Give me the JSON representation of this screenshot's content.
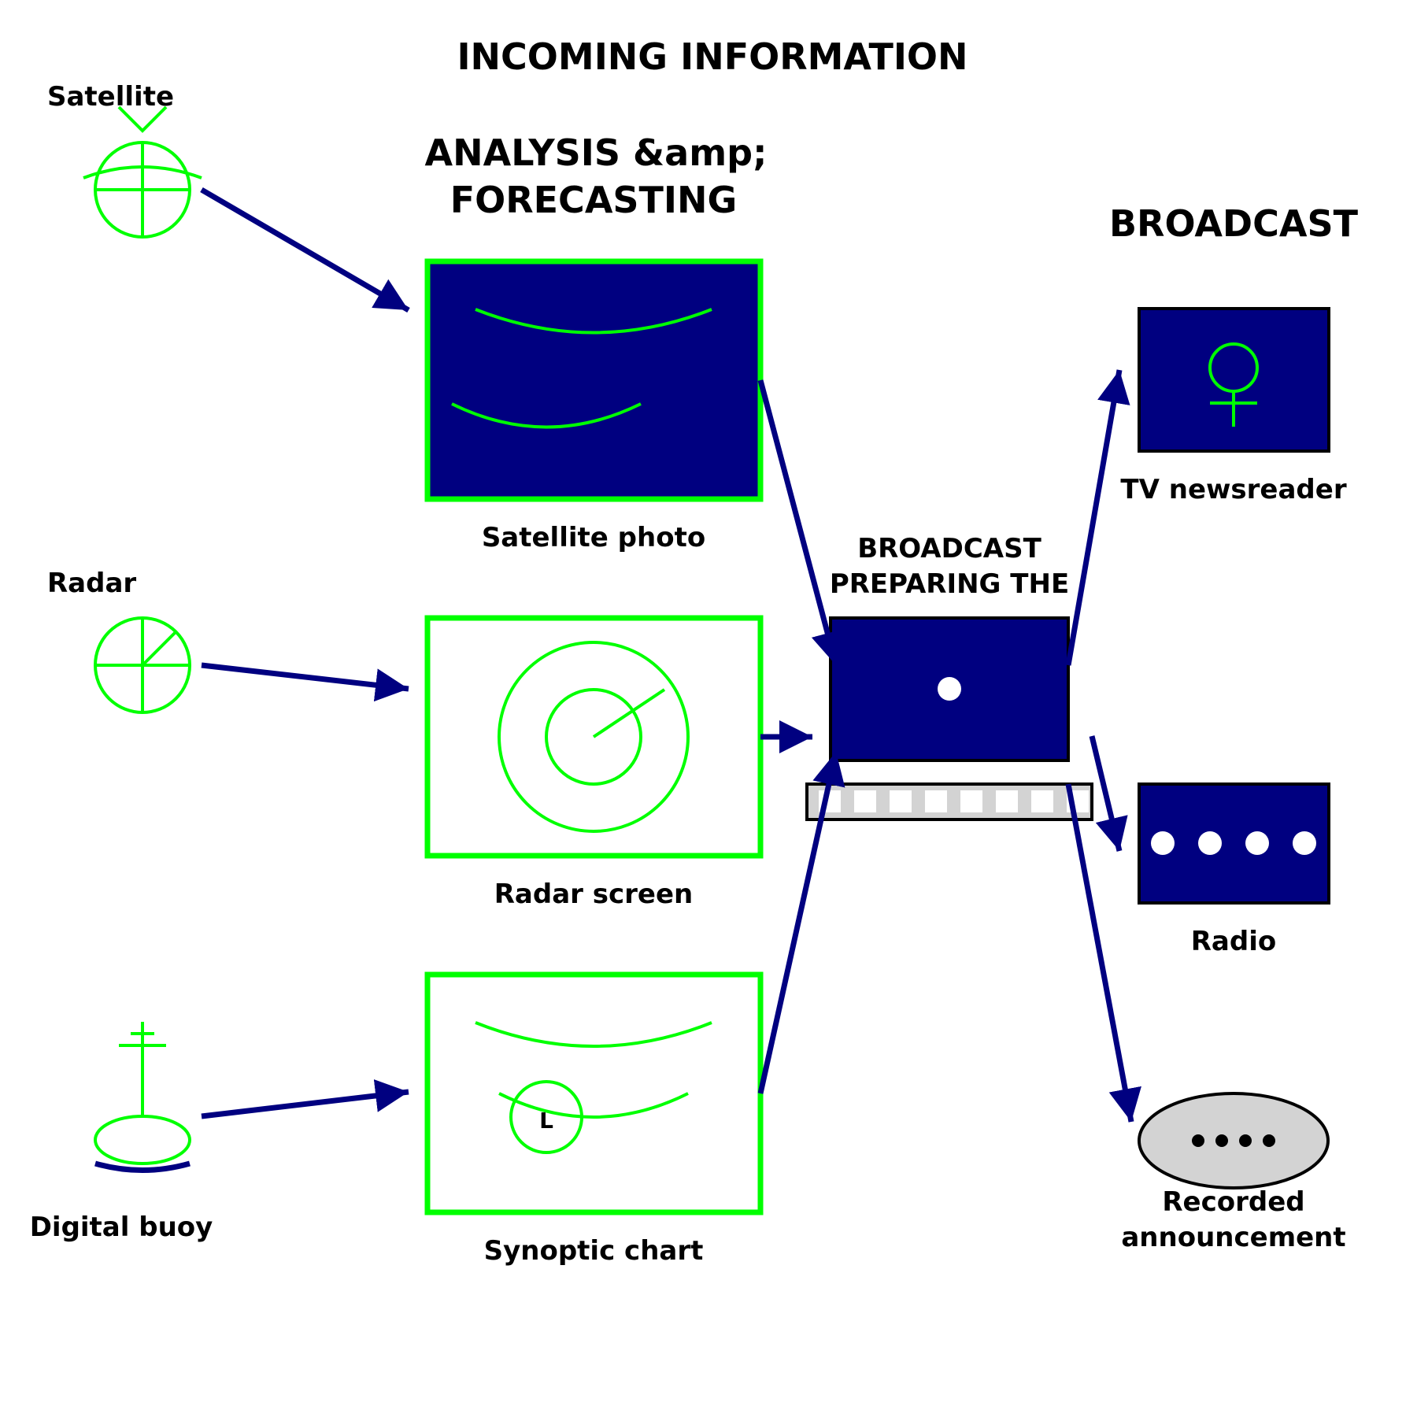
{
  "headings": {
    "incoming": "INCOMING INFORMATION",
    "analysis_line1": "ANALYSIS &amp;",
    "analysis_line2": "FORECASTING",
    "broadcast": "BROADCAST",
    "preparing_line1": "BROADCAST",
    "preparing_line2": "PREPARING THE"
  },
  "sources": {
    "satellite": "Satellite",
    "radar": "Radar",
    "buoy": "Digital buoy"
  },
  "analysis": {
    "satellite_photo": "Satellite photo",
    "radar_screen": "Radar screen",
    "synoptic_chart": "Synoptic chart",
    "low_symbol": "L"
  },
  "outputs": {
    "tv": "TV newsreader",
    "radio": "Radio",
    "recorded_line1": "Recorded",
    "recorded_line2": "announcement"
  },
  "icons": {
    "satellite": "satellite-icon",
    "radar": "radar-icon",
    "buoy": "buoy-icon",
    "computer": "computer-icon",
    "keyboard": "keyboard-icon",
    "tv": "female-symbol-icon",
    "radio": "radio-icon",
    "recorded": "speaker-icon"
  },
  "colors": {
    "navy": "#000080",
    "green": "#00ff00",
    "grey": "#d3d3d3",
    "white": "#ffffff",
    "black": "#000000"
  }
}
